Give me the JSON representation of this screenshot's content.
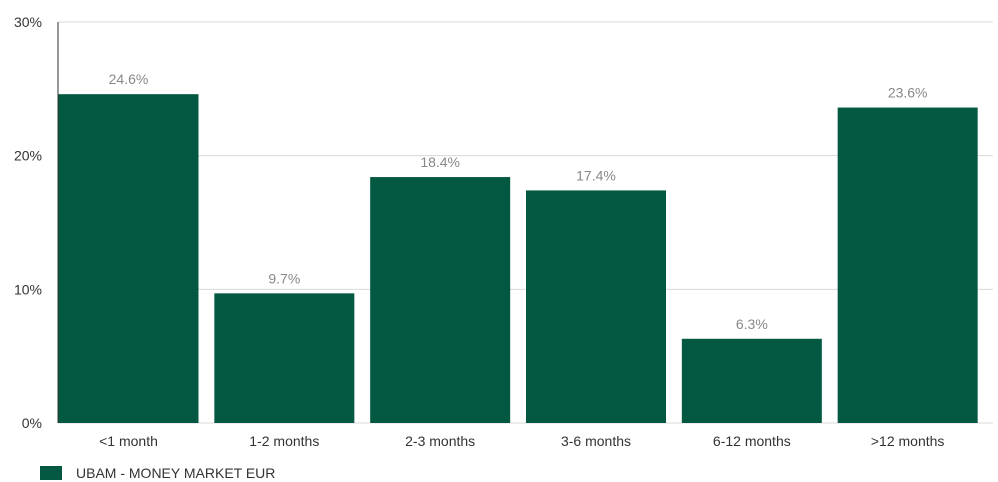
{
  "chart_data": {
    "type": "bar",
    "categories": [
      "<1 month",
      "1-2 months",
      "2-3 months",
      "3-6 months",
      "6-12 months",
      ">12 months"
    ],
    "series": [
      {
        "name": "UBAM - MONEY MARKET EUR",
        "values": [
          24.6,
          9.7,
          18.4,
          17.4,
          6.3,
          23.6
        ]
      }
    ],
    "data_labels": [
      "24.6%",
      "9.7%",
      "18.4%",
      "17.4%",
      "6.3%",
      "23.6%"
    ],
    "y_ticks": [
      {
        "value": 0,
        "label": "0%"
      },
      {
        "value": 10,
        "label": "10%"
      },
      {
        "value": 20,
        "label": "20%"
      },
      {
        "value": 30,
        "label": "30%"
      }
    ],
    "ylim": [
      0,
      30
    ],
    "grid": true,
    "legend_position": "bottom-left",
    "colors": {
      "bar": "#035841",
      "grid": "#d9d9d9",
      "axis": "#333333"
    }
  },
  "legend": {
    "label": "UBAM - MONEY MARKET EUR"
  }
}
